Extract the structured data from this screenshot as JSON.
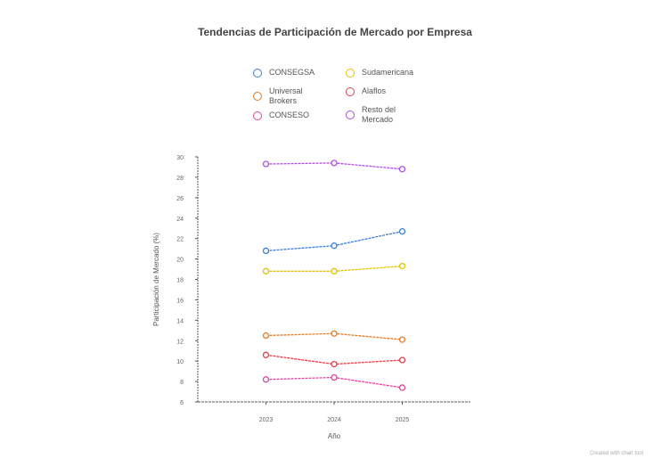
{
  "chart_data": {
    "type": "line",
    "title": "Tendencias de Participación de Mercado por Empresa",
    "xlabel": "Año",
    "ylabel": "Participación de Mercado (%)",
    "x": [
      2023,
      2024,
      2025
    ],
    "x_tick_labels": [
      "2023",
      "2024",
      "2025"
    ],
    "xlim": [
      2022,
      2026
    ],
    "ylim": [
      6,
      30
    ],
    "y_ticks": [
      6,
      8,
      10,
      12,
      14,
      16,
      18,
      20,
      22,
      24,
      26,
      28,
      30
    ],
    "grid": false,
    "legend_position": "top-center",
    "series": [
      {
        "name": "CONSEGSA",
        "color": "#3b7dd8",
        "values": [
          20.8,
          21.3,
          22.7
        ]
      },
      {
        "name": "Sudamericana",
        "color": "#e3c100",
        "values": [
          18.8,
          18.8,
          19.3
        ]
      },
      {
        "name": "Universal Brokers",
        "color": "#e07b28",
        "values": [
          12.5,
          12.7,
          12.1
        ]
      },
      {
        "name": "Alaflos",
        "color": "#dc3e4a",
        "values": [
          10.6,
          9.7,
          10.1
        ]
      },
      {
        "name": "CONSESO",
        "color": "#d9479f",
        "values": [
          8.2,
          8.4,
          7.4
        ]
      },
      {
        "name": "Resto del Mercado",
        "color": "#b04fe0",
        "values": [
          29.3,
          29.4,
          28.8
        ]
      }
    ]
  },
  "credit": "Created with chart tool"
}
